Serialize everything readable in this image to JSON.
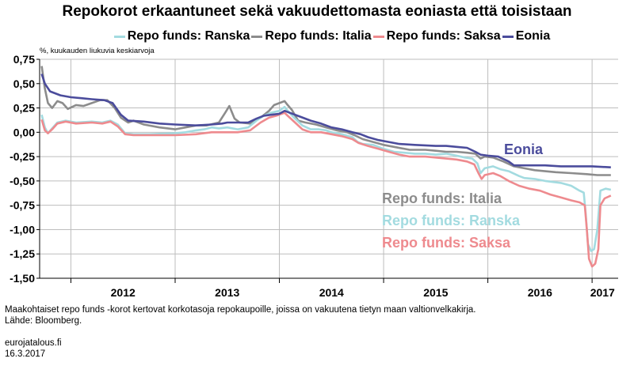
{
  "title": "Repokorot erkaantuneet sekä vakuudettomasta eoniasta että toisistaan",
  "unit_label": "%, kuukauden liukuvia keskiarvoja",
  "footer": {
    "note": "Maakohtaiset repo funds -korot kertovat korkotasoja repokaupoille, joissa on vakuutena tietyn maan valtionvelkakirja.",
    "source": "Lähde: Bloomberg.",
    "site": "eurojatalous.fi",
    "date": "16.3.2017"
  },
  "chart_data": {
    "type": "line",
    "title": "Repokorot erkaantuneet sekä vakuudettomasta eoniasta että toisistaan",
    "ylabel": "%, kuukauden liukuvia keskiarvoja",
    "xlabel": "",
    "ylim": [
      -1.5,
      0.75
    ],
    "xlim": [
      2011.7,
      2017.25
    ],
    "y_ticks": [
      "0,75",
      "0,50",
      "0,25",
      "0,00",
      "-0,25",
      "-0,50",
      "-0,75",
      "-1,00",
      "-1,25",
      "-1,50"
    ],
    "y_tick_values": [
      0.75,
      0.5,
      0.25,
      0.0,
      -0.25,
      -0.5,
      -0.75,
      -1.0,
      -1.25,
      -1.5
    ],
    "x_ticks": [
      "2012",
      "2013",
      "2014",
      "2015",
      "2016",
      "2017"
    ],
    "x_tick_values": [
      2012.5,
      2013.5,
      2014.5,
      2015.5,
      2016.5,
      2017.1
    ],
    "x_boundaries": [
      2012,
      2013,
      2014,
      2015,
      2016,
      2017
    ],
    "grid": true,
    "legend_position": "top",
    "series": [
      {
        "name": "Repo funds: Ranska",
        "color": "#a3dbe0",
        "annotation": "Repo funds: Ranska",
        "points": [
          [
            2011.72,
            0.18
          ],
          [
            2011.75,
            0.05
          ],
          [
            2011.78,
            -0.01
          ],
          [
            2011.82,
            0.04
          ],
          [
            2011.87,
            0.1
          ],
          [
            2011.95,
            0.12
          ],
          [
            2012.05,
            0.1
          ],
          [
            2012.2,
            0.11
          ],
          [
            2012.3,
            0.1
          ],
          [
            2012.38,
            0.12
          ],
          [
            2012.45,
            0.08
          ],
          [
            2012.52,
            -0.01
          ],
          [
            2012.6,
            -0.02
          ],
          [
            2012.75,
            -0.02
          ],
          [
            2013.0,
            -0.01
          ],
          [
            2013.1,
            0.0
          ],
          [
            2013.2,
            0.02
          ],
          [
            2013.28,
            0.03
          ],
          [
            2013.35,
            0.05
          ],
          [
            2013.42,
            0.04
          ],
          [
            2013.5,
            0.05
          ],
          [
            2013.6,
            0.03
          ],
          [
            2013.7,
            0.05
          ],
          [
            2013.78,
            0.12
          ],
          [
            2013.85,
            0.17
          ],
          [
            2013.92,
            0.2
          ],
          [
            2014.0,
            0.22
          ],
          [
            2014.05,
            0.26
          ],
          [
            2014.08,
            0.22
          ],
          [
            2014.15,
            0.14
          ],
          [
            2014.22,
            0.07
          ],
          [
            2014.3,
            0.03
          ],
          [
            2014.38,
            0.03
          ],
          [
            2014.45,
            0.02
          ],
          [
            2014.5,
            0.0
          ],
          [
            2014.6,
            -0.02
          ],
          [
            2014.7,
            -0.05
          ],
          [
            2014.75,
            -0.1
          ],
          [
            2014.8,
            -0.12
          ],
          [
            2014.9,
            -0.13
          ],
          [
            2015.0,
            -0.17
          ],
          [
            2015.1,
            -0.2
          ],
          [
            2015.2,
            -0.21
          ],
          [
            2015.3,
            -0.22
          ],
          [
            2015.4,
            -0.22
          ],
          [
            2015.5,
            -0.23
          ],
          [
            2015.6,
            -0.22
          ],
          [
            2015.7,
            -0.24
          ],
          [
            2015.78,
            -0.26
          ],
          [
            2015.85,
            -0.27
          ],
          [
            2015.9,
            -0.32
          ],
          [
            2015.93,
            -0.42
          ],
          [
            2015.97,
            -0.37
          ],
          [
            2016.05,
            -0.35
          ],
          [
            2016.12,
            -0.38
          ],
          [
            2016.2,
            -0.4
          ],
          [
            2016.3,
            -0.45
          ],
          [
            2016.35,
            -0.47
          ],
          [
            2016.45,
            -0.48
          ],
          [
            2016.55,
            -0.5
          ],
          [
            2016.7,
            -0.52
          ],
          [
            2016.8,
            -0.55
          ],
          [
            2016.88,
            -0.6
          ],
          [
            2016.92,
            -0.62
          ],
          [
            2016.94,
            -0.85
          ],
          [
            2016.96,
            -1.15
          ],
          [
            2016.99,
            -1.22
          ],
          [
            2017.02,
            -1.2
          ],
          [
            2017.05,
            -1.0
          ],
          [
            2017.08,
            -0.6
          ],
          [
            2017.13,
            -0.58
          ],
          [
            2017.18,
            -0.59
          ]
        ]
      },
      {
        "name": "Repo funds: Italia",
        "color": "#8c8c8c",
        "annotation": "Repo funds: Italia",
        "points": [
          [
            2011.72,
            0.68
          ],
          [
            2011.75,
            0.45
          ],
          [
            2011.78,
            0.3
          ],
          [
            2011.82,
            0.25
          ],
          [
            2011.87,
            0.32
          ],
          [
            2011.92,
            0.3
          ],
          [
            2011.97,
            0.24
          ],
          [
            2012.05,
            0.28
          ],
          [
            2012.12,
            0.27
          ],
          [
            2012.2,
            0.3
          ],
          [
            2012.28,
            0.33
          ],
          [
            2012.35,
            0.33
          ],
          [
            2012.42,
            0.25
          ],
          [
            2012.48,
            0.15
          ],
          [
            2012.55,
            0.1
          ],
          [
            2012.6,
            0.12
          ],
          [
            2012.7,
            0.08
          ],
          [
            2012.85,
            0.05
          ],
          [
            2013.0,
            0.03
          ],
          [
            2013.1,
            0.05
          ],
          [
            2013.2,
            0.07
          ],
          [
            2013.3,
            0.07
          ],
          [
            2013.42,
            0.1
          ],
          [
            2013.48,
            0.2
          ],
          [
            2013.52,
            0.27
          ],
          [
            2013.57,
            0.14
          ],
          [
            2013.62,
            0.1
          ],
          [
            2013.72,
            0.09
          ],
          [
            2013.82,
            0.15
          ],
          [
            2013.9,
            0.22
          ],
          [
            2013.95,
            0.28
          ],
          [
            2014.0,
            0.3
          ],
          [
            2014.05,
            0.32
          ],
          [
            2014.08,
            0.28
          ],
          [
            2014.12,
            0.23
          ],
          [
            2014.18,
            0.12
          ],
          [
            2014.25,
            0.1
          ],
          [
            2014.35,
            0.08
          ],
          [
            2014.45,
            0.05
          ],
          [
            2014.55,
            0.02
          ],
          [
            2014.65,
            0.0
          ],
          [
            2014.72,
            -0.03
          ],
          [
            2014.8,
            -0.07
          ],
          [
            2014.9,
            -0.1
          ],
          [
            2015.0,
            -0.13
          ],
          [
            2015.1,
            -0.15
          ],
          [
            2015.25,
            -0.18
          ],
          [
            2015.4,
            -0.18
          ],
          [
            2015.5,
            -0.19
          ],
          [
            2015.6,
            -0.2
          ],
          [
            2015.7,
            -0.2
          ],
          [
            2015.8,
            -0.21
          ],
          [
            2015.88,
            -0.22
          ],
          [
            2015.93,
            -0.27
          ],
          [
            2015.97,
            -0.25
          ],
          [
            2016.05,
            -0.26
          ],
          [
            2016.15,
            -0.3
          ],
          [
            2016.25,
            -0.35
          ],
          [
            2016.35,
            -0.37
          ],
          [
            2016.45,
            -0.39
          ],
          [
            2016.55,
            -0.4
          ],
          [
            2016.65,
            -0.41
          ],
          [
            2016.8,
            -0.42
          ],
          [
            2016.95,
            -0.43
          ],
          [
            2017.05,
            -0.44
          ],
          [
            2017.18,
            -0.44
          ]
        ]
      },
      {
        "name": "Repo funds: Saksa",
        "color": "#ee8a8e",
        "annotation": "Repo funds: Saksa",
        "points": [
          [
            2011.72,
            0.13
          ],
          [
            2011.75,
            0.02
          ],
          [
            2011.78,
            -0.01
          ],
          [
            2011.82,
            0.03
          ],
          [
            2011.87,
            0.09
          ],
          [
            2011.95,
            0.11
          ],
          [
            2012.05,
            0.09
          ],
          [
            2012.2,
            0.1
          ],
          [
            2012.3,
            0.09
          ],
          [
            2012.38,
            0.11
          ],
          [
            2012.45,
            0.06
          ],
          [
            2012.52,
            -0.02
          ],
          [
            2012.6,
            -0.03
          ],
          [
            2012.8,
            -0.03
          ],
          [
            2013.0,
            -0.03
          ],
          [
            2013.2,
            -0.02
          ],
          [
            2013.35,
            0.0
          ],
          [
            2013.45,
            0.0
          ],
          [
            2013.6,
            0.0
          ],
          [
            2013.72,
            0.02
          ],
          [
            2013.82,
            0.1
          ],
          [
            2013.9,
            0.15
          ],
          [
            2013.97,
            0.17
          ],
          [
            2014.05,
            0.2
          ],
          [
            2014.08,
            0.17
          ],
          [
            2014.15,
            0.1
          ],
          [
            2014.22,
            0.03
          ],
          [
            2014.3,
            0.0
          ],
          [
            2014.4,
            0.0
          ],
          [
            2014.5,
            -0.02
          ],
          [
            2014.6,
            -0.04
          ],
          [
            2014.7,
            -0.07
          ],
          [
            2014.76,
            -0.11
          ],
          [
            2014.85,
            -0.14
          ],
          [
            2014.95,
            -0.17
          ],
          [
            2015.05,
            -0.2
          ],
          [
            2015.15,
            -0.23
          ],
          [
            2015.25,
            -0.25
          ],
          [
            2015.4,
            -0.25
          ],
          [
            2015.5,
            -0.26
          ],
          [
            2015.6,
            -0.27
          ],
          [
            2015.7,
            -0.28
          ],
          [
            2015.8,
            -0.3
          ],
          [
            2015.87,
            -0.33
          ],
          [
            2015.91,
            -0.42
          ],
          [
            2015.94,
            -0.48
          ],
          [
            2015.97,
            -0.44
          ],
          [
            2016.05,
            -0.42
          ],
          [
            2016.12,
            -0.45
          ],
          [
            2016.2,
            -0.5
          ],
          [
            2016.3,
            -0.55
          ],
          [
            2016.4,
            -0.58
          ],
          [
            2016.5,
            -0.6
          ],
          [
            2016.6,
            -0.64
          ],
          [
            2016.7,
            -0.67
          ],
          [
            2016.8,
            -0.7
          ],
          [
            2016.88,
            -0.72
          ],
          [
            2016.93,
            -0.75
          ],
          [
            2016.95,
            -1.0
          ],
          [
            2016.97,
            -1.3
          ],
          [
            2017.0,
            -1.38
          ],
          [
            2017.03,
            -1.35
          ],
          [
            2017.06,
            -1.2
          ],
          [
            2017.08,
            -0.75
          ],
          [
            2017.12,
            -0.68
          ],
          [
            2017.18,
            -0.65
          ]
        ]
      },
      {
        "name": "Eonia",
        "color": "#4b4c9c",
        "annotation": "Eonia",
        "points": [
          [
            2011.72,
            0.6
          ],
          [
            2011.75,
            0.5
          ],
          [
            2011.8,
            0.42
          ],
          [
            2011.9,
            0.38
          ],
          [
            2012.0,
            0.36
          ],
          [
            2012.1,
            0.35
          ],
          [
            2012.2,
            0.34
          ],
          [
            2012.32,
            0.33
          ],
          [
            2012.4,
            0.3
          ],
          [
            2012.48,
            0.18
          ],
          [
            2012.55,
            0.12
          ],
          [
            2012.7,
            0.11
          ],
          [
            2012.85,
            0.09
          ],
          [
            2013.0,
            0.08
          ],
          [
            2013.2,
            0.07
          ],
          [
            2013.35,
            0.08
          ],
          [
            2013.45,
            0.09
          ],
          [
            2013.5,
            0.1
          ],
          [
            2013.6,
            0.1
          ],
          [
            2013.7,
            0.1
          ],
          [
            2013.78,
            0.14
          ],
          [
            2013.85,
            0.17
          ],
          [
            2013.92,
            0.18
          ],
          [
            2014.0,
            0.19
          ],
          [
            2014.05,
            0.22
          ],
          [
            2014.1,
            0.2
          ],
          [
            2014.2,
            0.16
          ],
          [
            2014.3,
            0.12
          ],
          [
            2014.4,
            0.09
          ],
          [
            2014.5,
            0.05
          ],
          [
            2014.6,
            0.03
          ],
          [
            2014.7,
            0.0
          ],
          [
            2014.78,
            -0.02
          ],
          [
            2014.85,
            -0.05
          ],
          [
            2014.95,
            -0.08
          ],
          [
            2015.05,
            -0.1
          ],
          [
            2015.15,
            -0.12
          ],
          [
            2015.3,
            -0.13
          ],
          [
            2015.5,
            -0.14
          ],
          [
            2015.6,
            -0.14
          ],
          [
            2015.7,
            -0.15
          ],
          [
            2015.8,
            -0.16
          ],
          [
            2015.88,
            -0.2
          ],
          [
            2015.93,
            -0.23
          ],
          [
            2016.0,
            -0.24
          ],
          [
            2016.1,
            -0.25
          ],
          [
            2016.2,
            -0.3
          ],
          [
            2016.25,
            -0.34
          ],
          [
            2016.4,
            -0.34
          ],
          [
            2016.55,
            -0.34
          ],
          [
            2016.7,
            -0.35
          ],
          [
            2016.85,
            -0.35
          ],
          [
            2017.0,
            -0.35
          ],
          [
            2017.18,
            -0.36
          ]
        ]
      }
    ]
  }
}
